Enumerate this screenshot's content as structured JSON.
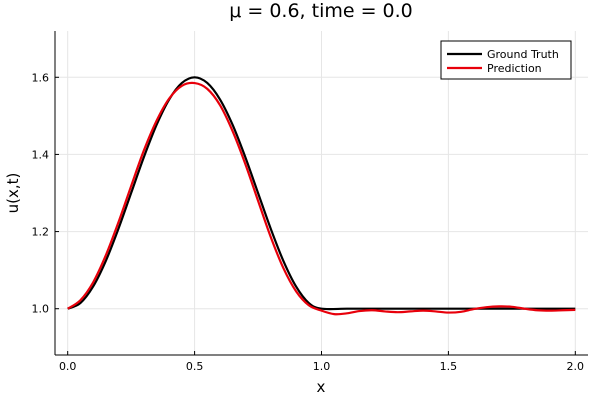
{
  "chart_data": {
    "type": "line",
    "title": "μ = 0.6, time = 0.0",
    "xlabel": "x",
    "ylabel": "u(x,t)",
    "xlim": [
      -0.05,
      2.05
    ],
    "ylim": [
      0.88,
      1.72
    ],
    "xticks": [
      0.0,
      0.5,
      1.0,
      1.5,
      2.0
    ],
    "xtick_labels": [
      "0.0",
      "0.5",
      "1.0",
      "1.5",
      "2.0"
    ],
    "yticks": [
      1.0,
      1.2,
      1.4,
      1.6
    ],
    "ytick_labels": [
      "1.0",
      "1.2",
      "1.4",
      "1.6"
    ],
    "grid": true,
    "legend_position": "top-right",
    "series": [
      {
        "name": "Ground Truth",
        "color": "#000000",
        "x": [
          0.0,
          0.05,
          0.1,
          0.15,
          0.2,
          0.25,
          0.3,
          0.35,
          0.4,
          0.45,
          0.5,
          0.55,
          0.6,
          0.65,
          0.7,
          0.75,
          0.8,
          0.85,
          0.9,
          0.95,
          1.0,
          1.1,
          1.2,
          1.3,
          1.4,
          1.5,
          1.6,
          1.7,
          1.8,
          1.9,
          2.0
        ],
        "y": [
          1.0,
          1.0147,
          1.0573,
          1.1236,
          1.2073,
          1.3,
          1.3927,
          1.4764,
          1.5427,
          1.5853,
          1.6,
          1.5853,
          1.5427,
          1.4764,
          1.3927,
          1.3,
          1.2073,
          1.1236,
          1.0573,
          1.0147,
          1.0,
          1.0,
          1.0,
          1.0,
          1.0,
          1.0,
          1.0,
          1.0,
          1.0,
          1.0,
          1.0
        ]
      },
      {
        "name": "Prediction",
        "color": "#e8000b",
        "x": [
          0.0,
          0.05,
          0.1,
          0.15,
          0.2,
          0.25,
          0.3,
          0.35,
          0.4,
          0.45,
          0.5,
          0.55,
          0.6,
          0.65,
          0.7,
          0.75,
          0.8,
          0.85,
          0.9,
          0.95,
          1.0,
          1.05,
          1.1,
          1.15,
          1.2,
          1.25,
          1.3,
          1.35,
          1.4,
          1.45,
          1.5,
          1.55,
          1.6,
          1.65,
          1.7,
          1.75,
          1.8,
          1.85,
          1.9,
          1.95,
          2.0
        ],
        "y": [
          1.0,
          1.022,
          1.068,
          1.138,
          1.224,
          1.318,
          1.41,
          1.487,
          1.545,
          1.578,
          1.585,
          1.57,
          1.528,
          1.46,
          1.375,
          1.28,
          1.186,
          1.105,
          1.045,
          1.009,
          0.995,
          0.986,
          0.988,
          0.994,
          0.996,
          0.993,
          0.991,
          0.993,
          0.995,
          0.993,
          0.99,
          0.992,
          0.999,
          1.004,
          1.006,
          1.005,
          1.0,
          0.996,
          0.995,
          0.996,
          0.997
        ]
      }
    ]
  }
}
